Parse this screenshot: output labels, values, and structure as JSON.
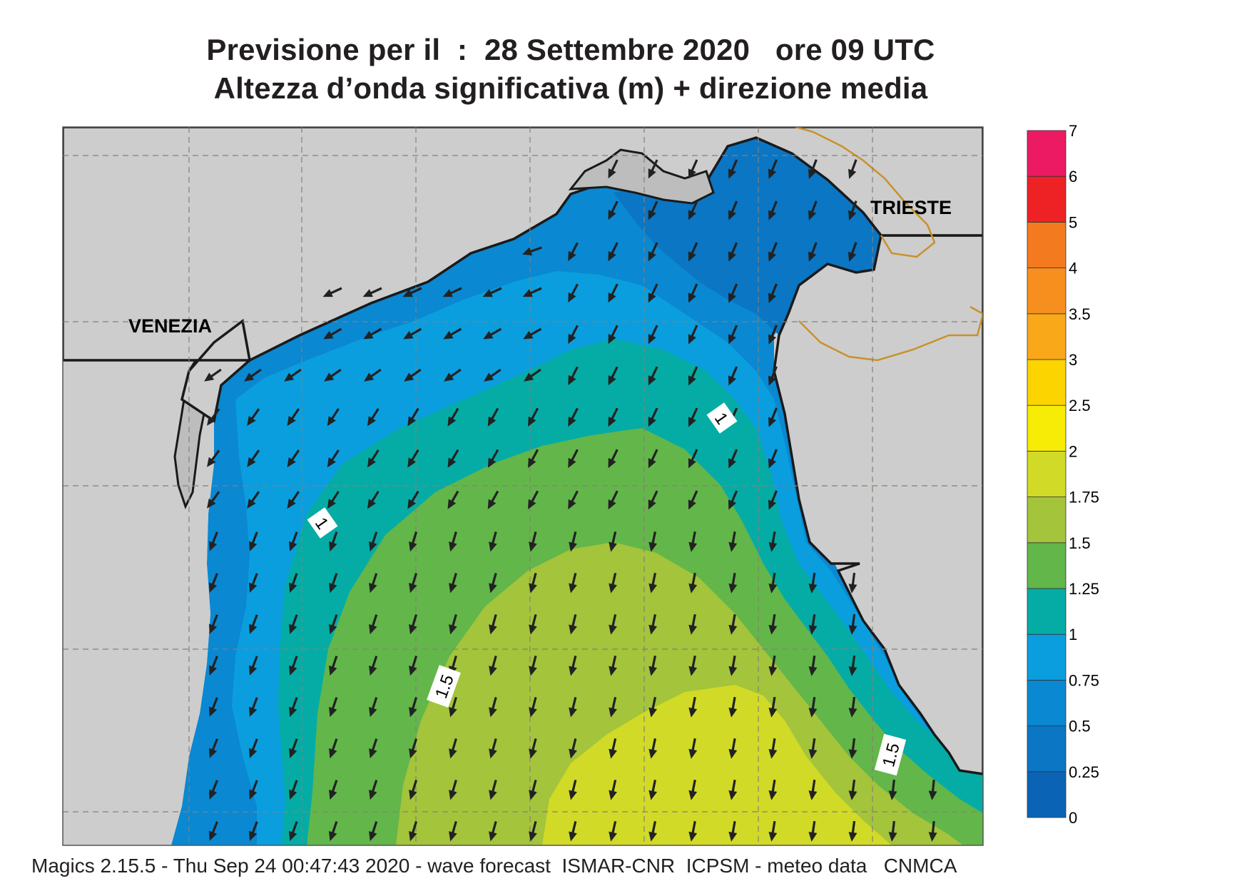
{
  "header": {
    "line1": "Previsione per il  :  28 Settembre 2020   ore 09 UTC",
    "line2": "Altezza d’onda significativa (m) + direzione media"
  },
  "map": {
    "places": {
      "venezia": "VENEZIA",
      "trieste": "TRIESTE"
    },
    "contour_labels": [
      "1",
      "1",
      "1.5",
      "1.5"
    ],
    "band_colors": {
      "0-0.25": "#0b63b6",
      "0.25-0.5": "#0a76c4",
      "0.5-0.75": "#0a88d2",
      "0.75-1": "#0a9ede",
      "1-1.25": "#05aca5",
      "1.25-1.5": "#63b64a",
      "1.5-1.75": "#a3c43b",
      "1.75-2": "#d1da27",
      "2-2.5": "#f6ec05",
      "2.5-3": "#fcd400",
      "3-3.5": "#f9a81a",
      "3.5-4": "#f78f1e",
      "4-5": "#f47a20",
      "5-6": "#ee2125",
      "6-7": "#ec1a62"
    },
    "land_color": "#cdcdcd",
    "border_color": "#c8922a"
  },
  "legend": {
    "ticks": [
      "0",
      "0.25",
      "0.5",
      "0.75",
      "1",
      "1.25",
      "1.5",
      "1.75",
      "2",
      "2.5",
      "3",
      "3.5",
      "4",
      "5",
      "6",
      "7"
    ],
    "colors": [
      "#0b63b6",
      "#0a76c4",
      "#0a88d2",
      "#0a9ede",
      "#05aca5",
      "#63b64a",
      "#a3c43b",
      "#d1da27",
      "#f6ec05",
      "#fcd400",
      "#f9a81a",
      "#f78f1e",
      "#f47a20",
      "#ee2125",
      "#ec1a62"
    ]
  },
  "footer": {
    "text": "Magics 2.15.5 - Thu Sep 24 00:47:43 2020 - wave forecast  ISMAR-CNR  ICPSM - meteo data   CNMCA"
  }
}
